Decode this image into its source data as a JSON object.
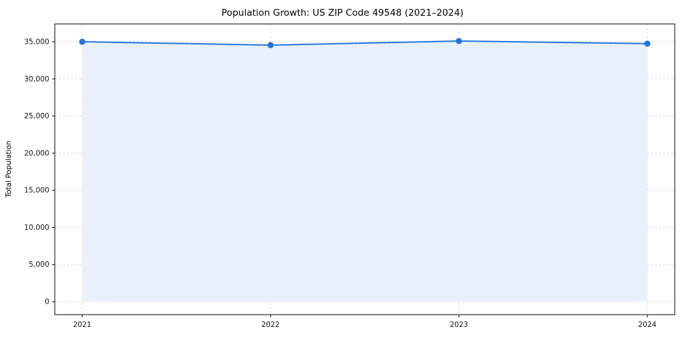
{
  "chart_data": {
    "type": "line",
    "title": "Population Growth: US ZIP Code 49548 (2021–2024)",
    "xlabel": "",
    "ylabel": "Total Population",
    "x": [
      2021,
      2022,
      2023,
      2024
    ],
    "series": [
      {
        "name": "Total Population",
        "values": [
          35000,
          34550,
          35100,
          34750
        ]
      }
    ],
    "yticks": [
      0,
      5000,
      10000,
      15000,
      20000,
      25000,
      30000,
      35000
    ],
    "ylim": [
      -1750,
      37400
    ],
    "xtick_labels": [
      "2021",
      "2022",
      "2023",
      "2024"
    ],
    "grid": true,
    "legend_position": "none",
    "line_color": "#2474dd",
    "marker_color": "#2474dd",
    "fill_color": "#e8f1fb",
    "grid_color": "#cfcfcf",
    "axis_color": "#000000"
  }
}
